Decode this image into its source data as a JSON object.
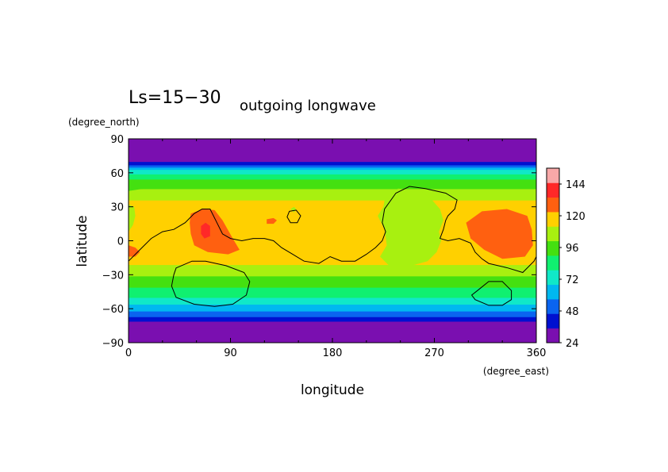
{
  "chart_data": {
    "type": "heatmap",
    "title_left": "Ls=15−30",
    "title_right": "outgoing longwave",
    "xlabel": "longitude",
    "ylabel": "latitude",
    "x_units": "(degree_east)",
    "y_units": "(degree_north)",
    "xlim": [
      0,
      360
    ],
    "ylim": [
      -90,
      90
    ],
    "x_ticks": [
      "0",
      "90",
      "180",
      "270",
      "360"
    ],
    "y_ticks": [
      "90",
      "60",
      "30",
      "0",
      "−30",
      "−60",
      "−90"
    ],
    "x_tick_values": [
      0,
      90,
      180,
      270,
      360
    ],
    "y_tick_values": [
      90,
      60,
      30,
      0,
      -30,
      -60,
      -90
    ],
    "colorbar": {
      "levels": [
        24,
        36,
        48,
        60,
        72,
        84,
        96,
        108,
        120,
        132,
        144,
        156
      ],
      "labels": [
        "144",
        "120",
        "96",
        "72",
        "48",
        "24"
      ],
      "label_values": [
        144,
        120,
        96,
        72,
        48,
        24
      ],
      "colors": [
        "#7a0fb0",
        "#0010d0",
        "#0a64f0",
        "#00b8f0",
        "#10e8c8",
        "#10f070",
        "#44e010",
        "#a8f010",
        "#ffd000",
        "#ff6010",
        "#ff2828",
        "#f8a8a8"
      ]
    },
    "zonal_bands": [
      {
        "lat": [
          -90,
          -77
        ],
        "value": 25
      },
      {
        "lat": [
          -77,
          -71
        ],
        "value": 30
      },
      {
        "lat": [
          -71,
          -67
        ],
        "value": 40
      },
      {
        "lat": [
          -67,
          -62
        ],
        "value": 54
      },
      {
        "lat": [
          -62,
          -56
        ],
        "value": 66
      },
      {
        "lat": [
          -56,
          -50
        ],
        "value": 78
      },
      {
        "lat": [
          -50,
          -41
        ],
        "value": 90
      },
      {
        "lat": [
          -41,
          -31
        ],
        "value": 102
      },
      {
        "lat": [
          -31,
          -21
        ],
        "value": 114
      },
      {
        "lat": [
          -21,
          36
        ],
        "value": 126
      },
      {
        "lat": [
          36,
          46
        ],
        "value": 114
      },
      {
        "lat": [
          46,
          54
        ],
        "value": 102
      },
      {
        "lat": [
          54,
          59
        ],
        "value": 90
      },
      {
        "lat": [
          59,
          63
        ],
        "value": 78
      },
      {
        "lat": [
          63,
          65
        ],
        "value": 66
      },
      {
        "lat": [
          65,
          67
        ],
        "value": 54
      },
      {
        "lat": [
          67,
          70
        ],
        "value": 40
      },
      {
        "lat": [
          70,
          90
        ],
        "value": 25
      }
    ],
    "regions": [
      {
        "value": 114,
        "lonlat": [
          [
            225,
            30
          ],
          [
            226,
            36
          ],
          [
            238,
            46
          ],
          [
            258,
            44
          ],
          [
            268,
            36
          ],
          [
            275,
            28
          ],
          [
            278,
            18
          ],
          [
            274,
            8
          ],
          [
            276,
            0
          ],
          [
            272,
            -10
          ],
          [
            264,
            -18
          ],
          [
            250,
            -22
          ],
          [
            230,
            -22
          ],
          [
            222,
            -14
          ],
          [
            228,
            -4
          ],
          [
            226,
            10
          ],
          [
            220,
            22
          ]
        ]
      },
      {
        "value": 114,
        "lonlat": [
          [
            0,
            8
          ],
          [
            4,
            14
          ],
          [
            6,
            22
          ],
          [
            5,
            30
          ],
          [
            0,
            32
          ]
        ]
      },
      {
        "value": 102,
        "lonlat": [
          [
            0,
            44
          ],
          [
            20,
            47
          ],
          [
            60,
            49
          ],
          [
            120,
            48
          ],
          [
            180,
            48
          ],
          [
            240,
            50
          ],
          [
            300,
            48
          ],
          [
            360,
            46
          ],
          [
            360,
            54
          ],
          [
            0,
            54
          ]
        ]
      },
      {
        "value": 114,
        "lonlat": [
          [
            235,
            18
          ],
          [
            242,
            22
          ],
          [
            240,
            28
          ],
          [
            234,
            24
          ]
        ]
      },
      {
        "value": 138,
        "lonlat": [
          [
            55,
            24
          ],
          [
            66,
            28
          ],
          [
            76,
            27
          ],
          [
            83,
            18
          ],
          [
            92,
            2
          ],
          [
            98,
            -8
          ],
          [
            88,
            -12
          ],
          [
            70,
            -10
          ],
          [
            58,
            -4
          ],
          [
            55,
            6
          ],
          [
            54,
            16
          ]
        ]
      },
      {
        "value": 138,
        "lonlat": [
          [
            298,
            16
          ],
          [
            312,
            26
          ],
          [
            334,
            28
          ],
          [
            352,
            22
          ],
          [
            356,
            10
          ],
          [
            357,
            -4
          ],
          [
            350,
            -14
          ],
          [
            330,
            -16
          ],
          [
            314,
            -8
          ],
          [
            302,
            2
          ]
        ]
      },
      {
        "value": 138,
        "lonlat": [
          [
            122,
            19
          ],
          [
            128,
            20
          ],
          [
            131,
            18
          ],
          [
            128,
            15
          ],
          [
            122,
            15
          ]
        ]
      },
      {
        "value": 138,
        "lonlat": [
          [
            0,
            -4
          ],
          [
            6,
            -6
          ],
          [
            10,
            -10
          ],
          [
            6,
            -14
          ],
          [
            0,
            -14
          ]
        ]
      },
      {
        "value": 150,
        "lonlat": [
          [
            64,
            13
          ],
          [
            68,
            16
          ],
          [
            72,
            13
          ],
          [
            72,
            4
          ],
          [
            67,
            2
          ],
          [
            64,
            6
          ]
        ]
      },
      {
        "value": 114,
        "lonlat": [
          [
            143,
            28
          ],
          [
            146,
            30
          ],
          [
            148,
            28
          ],
          [
            146,
            25
          ]
        ]
      }
    ],
    "contours": [
      {
        "closed": false,
        "lonlat": [
          [
            0,
            -18
          ],
          [
            10,
            -8
          ],
          [
            20,
            2
          ],
          [
            30,
            8
          ],
          [
            40,
            10
          ],
          [
            50,
            16
          ],
          [
            58,
            24
          ],
          [
            65,
            28
          ],
          [
            72,
            28
          ],
          [
            78,
            16
          ],
          [
            83,
            6
          ],
          [
            90,
            2
          ],
          [
            100,
            0
          ],
          [
            110,
            2
          ],
          [
            120,
            2
          ],
          [
            128,
            0
          ],
          [
            135,
            -6
          ],
          [
            145,
            -12
          ],
          [
            155,
            -18
          ],
          [
            168,
            -20
          ],
          [
            178,
            -14
          ],
          [
            188,
            -18
          ],
          [
            200,
            -18
          ],
          [
            210,
            -12
          ],
          [
            218,
            -6
          ],
          [
            224,
            0
          ],
          [
            227,
            8
          ],
          [
            224,
            16
          ],
          [
            226,
            28
          ],
          [
            236,
            42
          ],
          [
            248,
            48
          ],
          [
            262,
            46
          ],
          [
            280,
            42
          ],
          [
            290,
            36
          ],
          [
            288,
            28
          ],
          [
            282,
            22
          ],
          [
            280,
            18
          ],
          [
            278,
            10
          ],
          [
            275,
            2
          ],
          [
            282,
            0
          ],
          [
            292,
            2
          ],
          [
            302,
            -2
          ],
          [
            306,
            -10
          ],
          [
            312,
            -16
          ],
          [
            318,
            -20
          ],
          [
            335,
            -24
          ],
          [
            348,
            -28
          ],
          [
            358,
            -18
          ],
          [
            360,
            -14
          ]
        ]
      },
      {
        "closed": true,
        "lonlat": [
          [
            42,
            -24
          ],
          [
            56,
            -18
          ],
          [
            68,
            -18
          ],
          [
            86,
            -22
          ],
          [
            102,
            -28
          ],
          [
            107,
            -36
          ],
          [
            104,
            -48
          ],
          [
            92,
            -56
          ],
          [
            76,
            -58
          ],
          [
            58,
            -56
          ],
          [
            42,
            -50
          ],
          [
            38,
            -40
          ],
          [
            40,
            -30
          ]
        ]
      },
      {
        "closed": true,
        "lonlat": [
          [
            308,
            -44
          ],
          [
            318,
            -36
          ],
          [
            330,
            -36
          ],
          [
            338,
            -44
          ],
          [
            338,
            -52
          ],
          [
            330,
            -57
          ],
          [
            318,
            -57
          ],
          [
            306,
            -52
          ],
          [
            303,
            -48
          ]
        ]
      },
      {
        "closed": true,
        "lonlat": [
          [
            142,
            26
          ],
          [
            148,
            27
          ],
          [
            152,
            22
          ],
          [
            149,
            16
          ],
          [
            143,
            16
          ],
          [
            140,
            21
          ]
        ]
      }
    ]
  }
}
